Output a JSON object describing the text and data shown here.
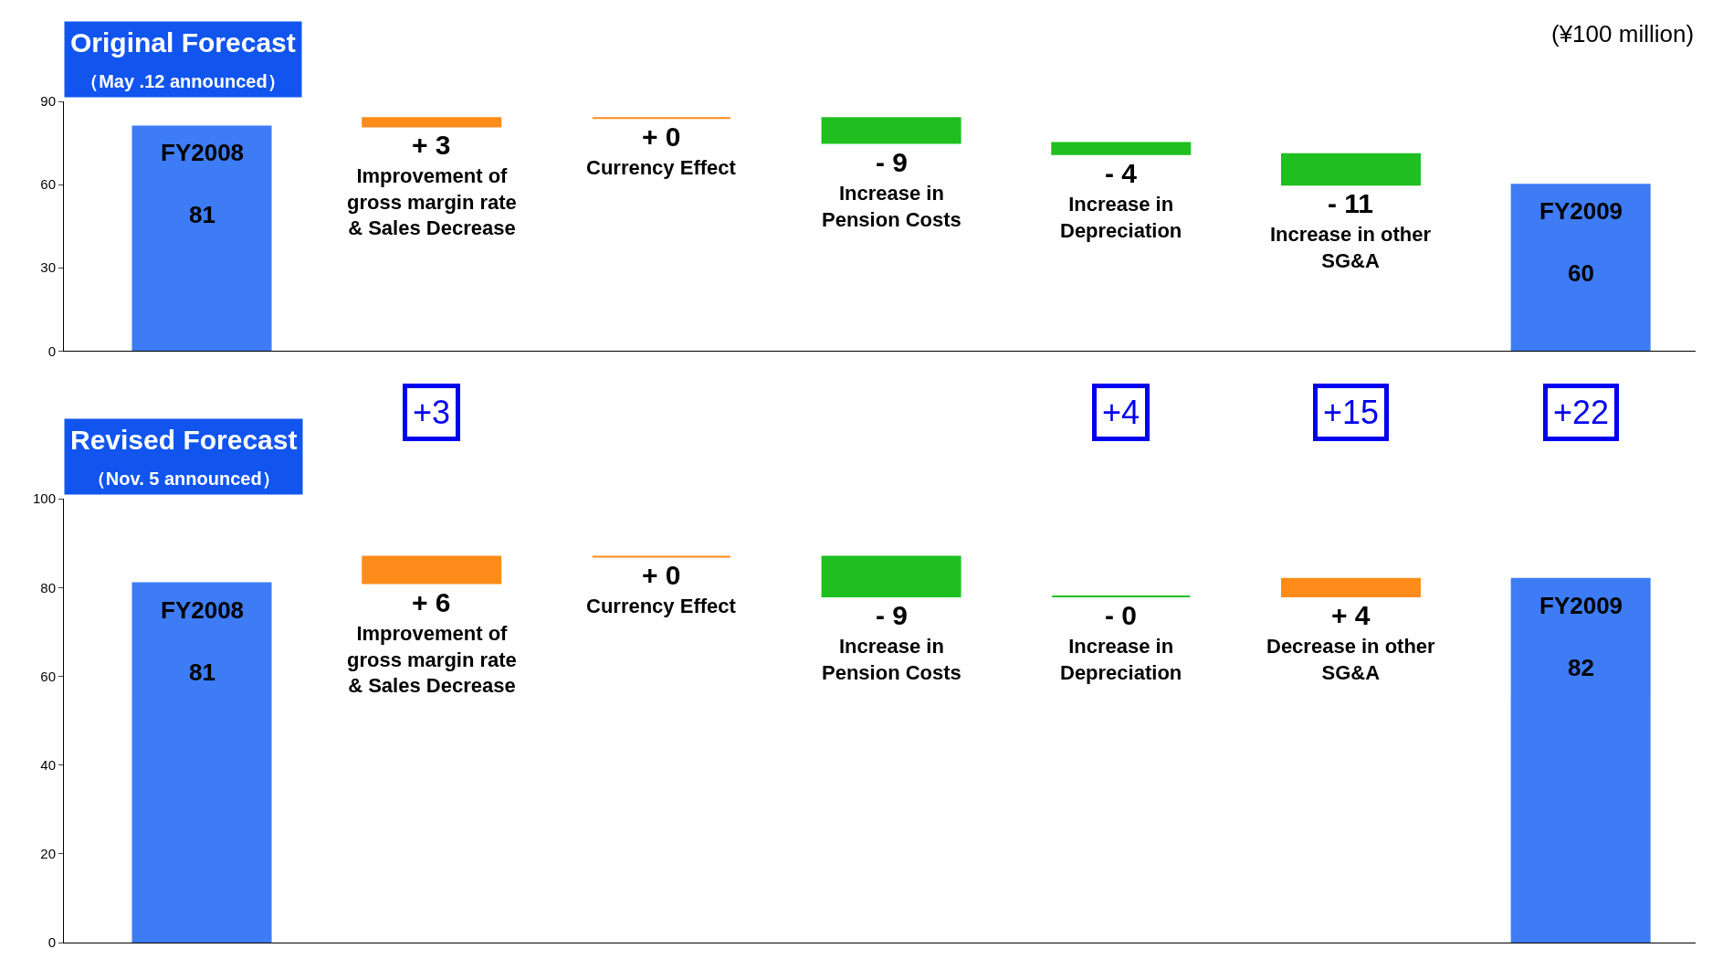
{
  "chart_data": [
    {
      "type": "bar",
      "title": "Original Forecast",
      "subtitle": "（May .12 announced）",
      "annotations": [
        "(¥100 million)"
      ],
      "categories": [
        "FY2008",
        "Improvement of gross margin rate & Sales Decrease",
        "Currency Effect",
        "Increase in Pension Costs",
        "Increase in Depreciation",
        "Increase in other SG&A",
        "FY2009"
      ],
      "values": [
        81,
        3,
        0,
        -9,
        -4,
        -11,
        60
      ],
      "base": [
        0,
        81,
        84,
        84,
        75,
        71,
        0
      ],
      "colors": [
        "#3d7cf5",
        "#ff8c1a",
        "#ff8c1a",
        "#1fbf1f",
        "#1fbf1f",
        "#1fbf1f",
        "#3d7cf5"
      ],
      "value_labels": [
        "81",
        "+ 3",
        "+ 0",
        "- 9",
        "- 4",
        "- 11",
        "60"
      ],
      "ylim": [
        0,
        90
      ],
      "yticks": [
        0,
        30,
        60,
        90
      ],
      "tick_labels": "y",
      "legend": false
    },
    {
      "type": "bar",
      "title": "Revised Forecast",
      "subtitle": "（Nov. 5 announced）",
      "annotations": [
        "+3",
        "+4",
        "+15",
        "+22"
      ],
      "categories": [
        "FY2008",
        "Improvement of gross margin rate & Sales Decrease",
        "Currency Effect",
        "Increase in Pension Costs",
        "Increase in Depreciation",
        "Decrease in other SG&A",
        "FY2009"
      ],
      "values": [
        81,
        6,
        0,
        -9,
        0,
        4,
        82
      ],
      "base": [
        0,
        81,
        87,
        87,
        78,
        78,
        0
      ],
      "colors": [
        "#3d7cf5",
        "#ff8c1a",
        "#ff8c1a",
        "#1fbf1f",
        "#1fbf1f",
        "#ff8c1a",
        "#3d7cf5"
      ],
      "value_labels": [
        "81",
        "+ 6",
        "+ 0",
        "- 9",
        "- 0",
        "+ 4",
        "82"
      ],
      "ylim": [
        0,
        100
      ],
      "yticks": [
        0,
        20,
        40,
        60,
        80,
        100
      ],
      "tick_labels": "y",
      "legend": false
    }
  ]
}
